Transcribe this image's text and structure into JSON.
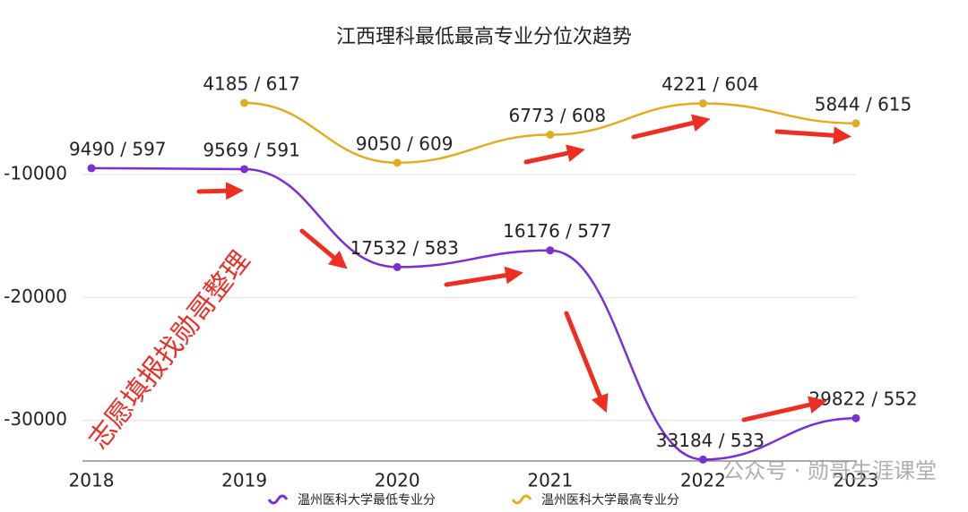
{
  "chart_data": {
    "type": "line",
    "title": "江西理科最低最高专业分位次趋势",
    "categories": [
      "2018",
      "2019",
      "2020",
      "2021",
      "2022",
      "2023"
    ],
    "series": [
      {
        "name": "温州医科大学最低专业分",
        "color": "#7b2fd0",
        "values": [
          -9490,
          -9569,
          -17532,
          -16176,
          -33184,
          -29822
        ],
        "value_labels": [
          "9490 / 597",
          "9569 / 591",
          "17532 / 583",
          "16176 / 577",
          "33184 / 533",
          "29822 / 552"
        ]
      },
      {
        "name": "温州医科大学最高专业分",
        "color": "#e0ad22",
        "values": [
          null,
          -4185,
          -9050,
          -6773,
          -4221,
          -5844
        ],
        "value_labels": [
          null,
          "4185 / 617",
          "9050 / 609",
          "6773 / 608",
          "4221 / 604",
          "5844 / 615"
        ]
      }
    ],
    "ylim": [
      -33300,
      0
    ],
    "yticks": [
      -10000,
      -20000,
      -30000
    ],
    "grid": true,
    "annotations": [
      "志愿填报找勋哥整理",
      "公众号 · 勋哥生涯课堂"
    ]
  }
}
